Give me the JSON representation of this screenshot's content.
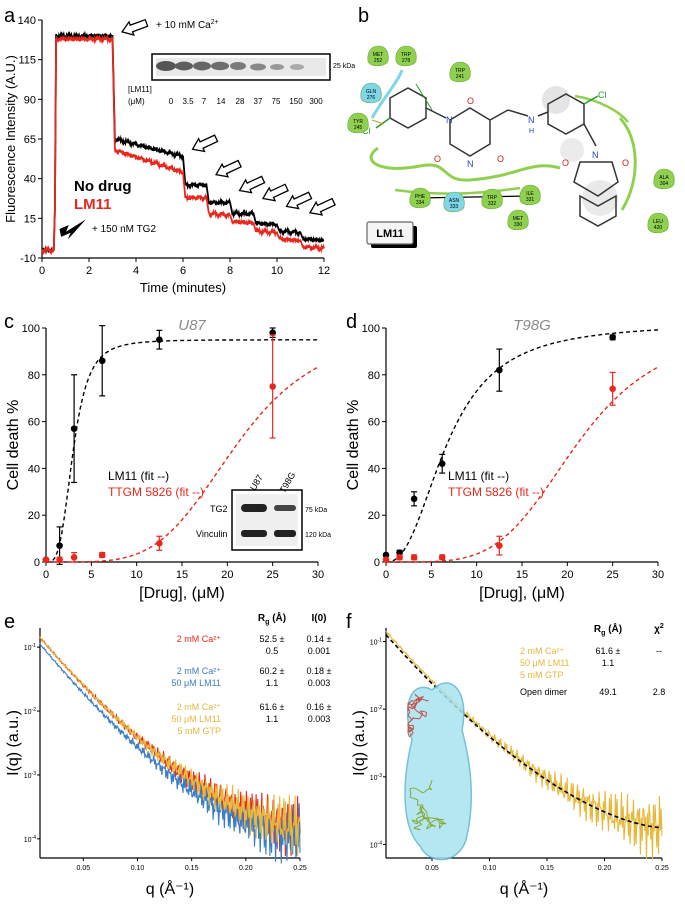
{
  "panels": {
    "a": "a",
    "b": "b",
    "c": "c",
    "d": "d",
    "e": "e",
    "f": "f"
  },
  "colors": {
    "black": "#000000",
    "red": "#e8281e",
    "blue": "#3a7dc4",
    "yellow": "#e6b83c",
    "green": "#8fd14f",
    "cyan": "#7fd6e8"
  },
  "panel_a": {
    "annotations": {
      "ca": "+ 10 mM Ca",
      "ca_sup": "2+",
      "tg2": "+ 150 nM TG2",
      "legend_black": "No drug",
      "legend_red": "LM11"
    },
    "blot": {
      "label": "[LM11]",
      "unit": "(μM)",
      "concs": [
        "0",
        "3.5",
        "7",
        "14",
        "28",
        "37",
        "75",
        "150",
        "300"
      ],
      "kda": "25 kDa"
    }
  },
  "panel_b": {
    "title": "LM11",
    "residues": [
      {
        "name": "MET",
        "num": "252"
      },
      {
        "name": "TRP",
        "num": "278"
      },
      {
        "name": "TRP",
        "num": "241"
      },
      {
        "name": "GLN",
        "num": "276"
      },
      {
        "name": "TYR",
        "num": "245"
      },
      {
        "name": "PHE",
        "num": "334"
      },
      {
        "name": "ASN",
        "num": "333"
      },
      {
        "name": "TRP",
        "num": "332"
      },
      {
        "name": "ILE",
        "num": "331"
      },
      {
        "name": "MET",
        "num": "330"
      },
      {
        "name": "ALA",
        "num": "304"
      },
      {
        "name": "LEU",
        "num": "420"
      }
    ],
    "atoms": {
      "cl": "Cl",
      "o": "O",
      "n": "N",
      "nh": "N",
      "h": "H"
    }
  },
  "panel_c_inset": {
    "cols": [
      "U87",
      "T98G"
    ],
    "rows": [
      "TG2",
      "Vinculin"
    ],
    "kda": [
      "75 kDa",
      "120 kDa"
    ]
  },
  "panel_e": {
    "headers": {
      "rg": "R",
      "rg_sub": "g",
      "rg_unit": " (Å)",
      "i0": "I(0)"
    },
    "rows": [
      {
        "labels": [
          "2 mM Ca²⁺"
        ],
        "rg": [
          "52.5 ±",
          "0.5"
        ],
        "i0": [
          "0.14 ±",
          "0.001"
        ]
      },
      {
        "labels": [
          "2 mM Ca²⁺",
          "50 μM LM11"
        ],
        "rg": [
          "60.2 ±",
          "1.1"
        ],
        "i0": [
          "0.18 ±",
          "0.003"
        ]
      },
      {
        "labels": [
          "2 mM Ca²⁺",
          "50 μM LM11",
          "5 mM GTP"
        ],
        "rg": [
          "61.6 ±",
          "1.1"
        ],
        "i0": [
          "0.16 ±",
          "0.003"
        ]
      }
    ]
  },
  "panel_f": {
    "headers": {
      "rg": "R",
      "rg_sub": "g",
      "rg_unit": " (Å)",
      "chi": "χ",
      "chi_sup": "2"
    },
    "rows": [
      {
        "labels": [
          "2 mM Ca²⁺",
          "50 μM LM11",
          "5 mM GTP"
        ],
        "rg": [
          "61.6 ±",
          "1.1"
        ],
        "chi": "--"
      },
      {
        "labels": [
          "Open dimer"
        ],
        "rg": [
          "49.1"
        ],
        "chi": "2.8"
      }
    ]
  },
  "chart_data": [
    {
      "panel": "a",
      "type": "line",
      "xlabel": "Time (minutes)",
      "ylabel": "Fluorescence Intensity (A.U.)",
      "xlim": [
        0,
        12
      ],
      "ylim": [
        -10,
        140
      ],
      "xticks": [
        0,
        2,
        4,
        6,
        8,
        10,
        12
      ],
      "yticks": [
        -10,
        15,
        40,
        65,
        90,
        115,
        140
      ],
      "series": [
        {
          "name": "No drug",
          "color": "black",
          "x": [
            0,
            0.5,
            0.55,
            0.6,
            3.0,
            3.1,
            6.0,
            6.1,
            7.0,
            7.1,
            8.0,
            8.1,
            9.0,
            9.1,
            10.0,
            10.1,
            11.0,
            11.1,
            12.0
          ],
          "y": [
            -5,
            -5,
            20,
            130,
            130,
            65,
            54,
            36,
            36,
            25,
            25,
            18,
            18,
            12,
            11,
            7,
            6,
            2,
            1
          ]
        },
        {
          "name": "LM11",
          "color": "red",
          "x": [
            0,
            0.5,
            0.55,
            0.6,
            3.0,
            3.1,
            6.0,
            6.1,
            7.0,
            7.1,
            8.0,
            8.1,
            9.0,
            9.1,
            10.0,
            10.1,
            11.0,
            11.1,
            12.0
          ],
          "y": [
            -5,
            -5,
            20,
            128,
            128,
            58,
            44,
            28,
            28,
            18,
            17,
            13,
            12,
            7,
            6,
            2,
            1,
            -3,
            -4
          ]
        }
      ]
    },
    {
      "panel": "c",
      "type": "scatter",
      "title": "U87",
      "xlabel": "[Drug], (μM)",
      "ylabel": "Cell death %",
      "xlim": [
        0,
        30
      ],
      "ylim": [
        0,
        100
      ],
      "xticks": [
        0,
        5,
        10,
        15,
        20,
        25,
        30
      ],
      "yticks": [
        0,
        20,
        40,
        60,
        80,
        100
      ],
      "series": [
        {
          "name": "LM11 (fit --)",
          "color": "black",
          "x": [
            0,
            1.5,
            3.1,
            6.2,
            12.5,
            25
          ],
          "y": [
            1,
            7,
            57,
            86,
            95,
            98
          ],
          "err": [
            0,
            8,
            23,
            15,
            4,
            2
          ]
        },
        {
          "name": "TTGM 5826 (fit --)",
          "color": "red",
          "x": [
            0,
            1.5,
            3.1,
            6.2,
            12.5,
            25
          ],
          "y": [
            1,
            1,
            2,
            3,
            8,
            75
          ],
          "err": [
            0,
            1,
            2,
            1,
            3,
            22
          ]
        }
      ]
    },
    {
      "panel": "d",
      "type": "scatter",
      "title": "T98G",
      "xlabel": "[Drug], (μM)",
      "ylabel": "Cell death %",
      "xlim": [
        0,
        30
      ],
      "ylim": [
        0,
        100
      ],
      "xticks": [
        0,
        5,
        10,
        15,
        20,
        25,
        30
      ],
      "yticks": [
        0,
        20,
        40,
        60,
        80,
        100
      ],
      "series": [
        {
          "name": "LM11 (fit --)",
          "color": "black",
          "x": [
            0,
            1.5,
            3.1,
            6.2,
            12.5,
            25
          ],
          "y": [
            3,
            4,
            27,
            42,
            82,
            96
          ],
          "err": [
            0,
            1,
            3,
            4,
            9,
            1
          ]
        },
        {
          "name": "TTGM 5826 (fit --)",
          "color": "red",
          "x": [
            0,
            1.5,
            3.1,
            6.2,
            12.5,
            25
          ],
          "y": [
            1,
            2,
            2,
            2,
            7,
            74
          ],
          "err": [
            0,
            1,
            1,
            1,
            4,
            7
          ]
        }
      ]
    },
    {
      "panel": "e",
      "type": "line",
      "xlabel": "q (Å⁻¹)",
      "ylabel": "I(q) (a.u.)",
      "xlim": [
        0.01,
        0.25
      ],
      "yscale": "log",
      "ylim_exp": [
        -4.3,
        -0.7
      ],
      "xticks": [
        0.05,
        0.1,
        0.15,
        0.2,
        0.25
      ],
      "xticklabels": [
        "0.05",
        "0.10",
        "0.15",
        "0.20",
        "0.25"
      ],
      "ytickexp": [
        -4,
        -3,
        -2,
        -1
      ],
      "series": [
        {
          "name": "2 mM Ca2+",
          "color": "red",
          "y0": -0.85,
          "y1": -3.8
        },
        {
          "name": "2 mM Ca2+ 50 μM LM11",
          "color": "blue",
          "y0": -0.95,
          "y1": -4.0
        },
        {
          "name": "2 mM Ca2+ 50 μM LM11 5 mM GTP",
          "color": "yellow",
          "y0": -0.85,
          "y1": -3.8
        }
      ]
    },
    {
      "panel": "f",
      "type": "line",
      "xlabel": "q (Å⁻¹)",
      "ylabel": "I(q) (a.u.)",
      "xlim": [
        0.01,
        0.25
      ],
      "yscale": "log",
      "ylim_exp": [
        -4.2,
        -0.8
      ],
      "xticks": [
        0.05,
        0.1,
        0.15,
        0.2,
        0.25
      ],
      "xticklabels": [
        "0.05",
        "0.10",
        "0.15",
        "0.20",
        "0.25"
      ],
      "ytickexp": [
        -4,
        -3,
        -2,
        -1
      ],
      "series": [
        {
          "name": "2 mM Ca2+ 50 μM LM11 5 mM GTP",
          "color": "yellow",
          "y0": -0.85,
          "y1": -3.75
        },
        {
          "name": "Open dimer",
          "color": "black",
          "style": "dashed",
          "y0": -0.9,
          "y1": -3.75
        }
      ]
    }
  ]
}
